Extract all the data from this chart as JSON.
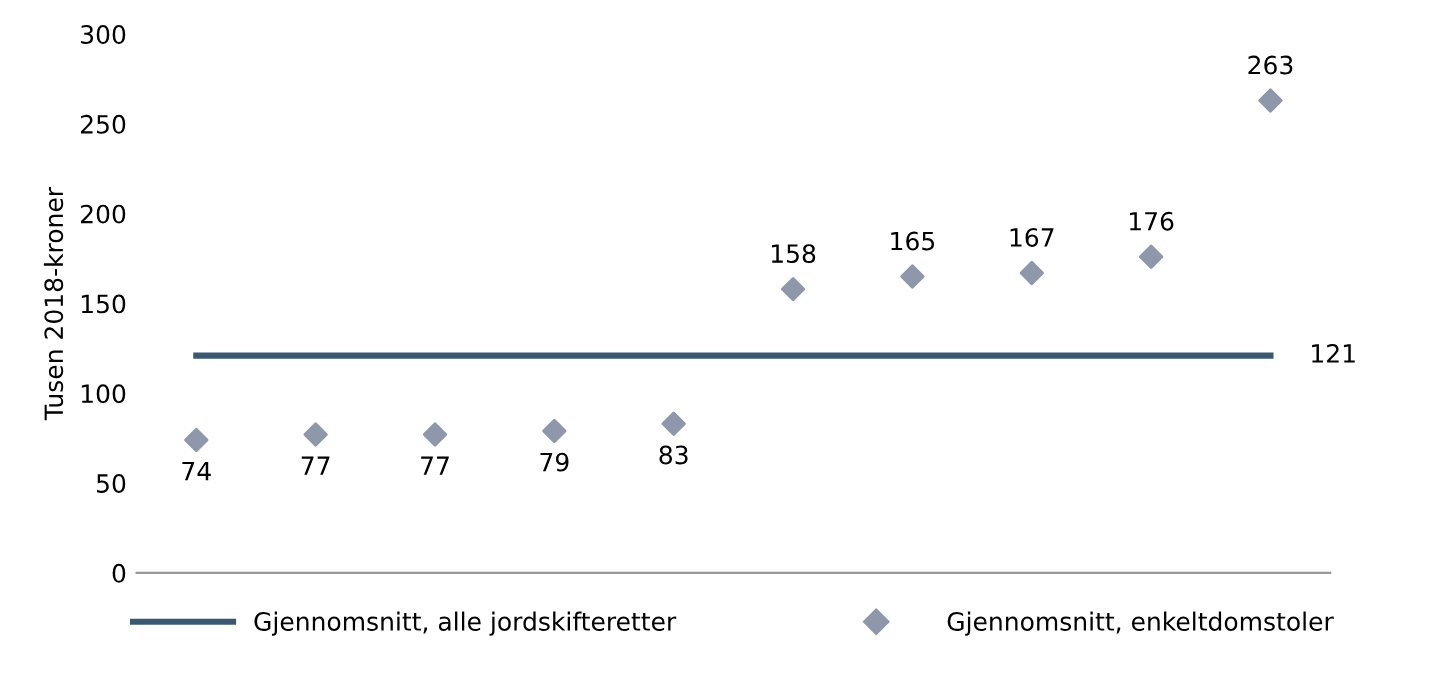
{
  "chart_data": {
    "type": "scatter",
    "ylabel": "Tusen 2018-kroner",
    "categories": [
      null,
      null,
      null,
      null,
      null,
      null,
      null,
      null,
      null,
      null
    ],
    "series": [
      {
        "name": "Gjennomsnitt, alle jordskifteretter",
        "type": "line",
        "color": "#3b5873",
        "values": [
          121,
          121,
          121,
          121,
          121,
          121,
          121,
          121,
          121,
          121
        ],
        "value_labels": [
          null,
          null,
          null,
          null,
          null,
          null,
          null,
          null,
          null,
          "121"
        ],
        "line_style": "solid",
        "marker": "none"
      },
      {
        "name": "Gjennomsnitt, enkeltdomstoler",
        "color": "#8f97ab",
        "values": [
          74,
          77,
          77,
          79,
          83,
          158,
          165,
          167,
          176,
          263
        ],
        "marker": "diamond",
        "data_labels": true
      }
    ],
    "ylim": [
      0,
      300
    ],
    "yticks": [
      0,
      50,
      100,
      150,
      200,
      250,
      300
    ],
    "grid": false,
    "legend": "bottom"
  }
}
